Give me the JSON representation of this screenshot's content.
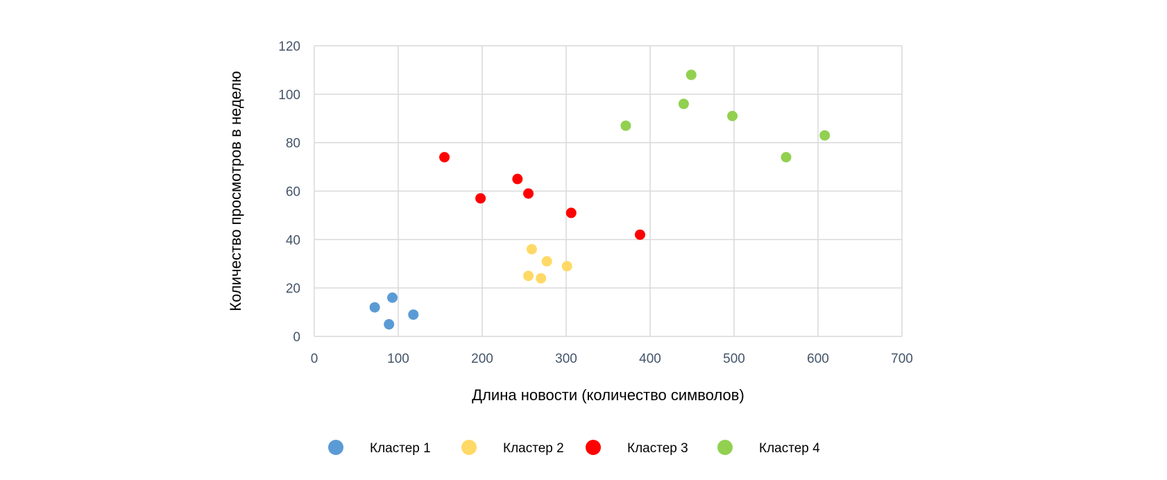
{
  "chart_data": {
    "type": "scatter",
    "title": "",
    "xlabel": "Длина новости (количество символов)",
    "ylabel": "Количество просмотров в неделю",
    "xlim": [
      0,
      700
    ],
    "ylim": [
      0,
      120
    ],
    "xticks": [
      0,
      100,
      200,
      300,
      400,
      500,
      600,
      700
    ],
    "yticks": [
      0,
      20,
      40,
      60,
      80,
      100,
      120
    ],
    "grid": true,
    "legend_position": "bottom",
    "series": [
      {
        "name": "Кластер 1",
        "color": "#5b9bd5",
        "points": [
          {
            "x": 72,
            "y": 12
          },
          {
            "x": 93,
            "y": 16
          },
          {
            "x": 89,
            "y": 5
          },
          {
            "x": 118,
            "y": 9
          }
        ]
      },
      {
        "name": "Кластер 2",
        "color": "#ffd966",
        "points": [
          {
            "x": 259,
            "y": 36
          },
          {
            "x": 277,
            "y": 31
          },
          {
            "x": 301,
            "y": 29
          },
          {
            "x": 255,
            "y": 25
          },
          {
            "x": 270,
            "y": 24
          }
        ]
      },
      {
        "name": "Кластер 3",
        "color": "#ff0000",
        "points": [
          {
            "x": 155,
            "y": 74
          },
          {
            "x": 198,
            "y": 57
          },
          {
            "x": 242,
            "y": 65
          },
          {
            "x": 255,
            "y": 59
          },
          {
            "x": 306,
            "y": 51
          },
          {
            "x": 388,
            "y": 42
          }
        ]
      },
      {
        "name": "Кластер 4",
        "color": "#92d050",
        "points": [
          {
            "x": 371,
            "y": 87
          },
          {
            "x": 449,
            "y": 108
          },
          {
            "x": 440,
            "y": 96
          },
          {
            "x": 498,
            "y": 91
          },
          {
            "x": 608,
            "y": 83
          },
          {
            "x": 562,
            "y": 74
          }
        ]
      }
    ]
  }
}
